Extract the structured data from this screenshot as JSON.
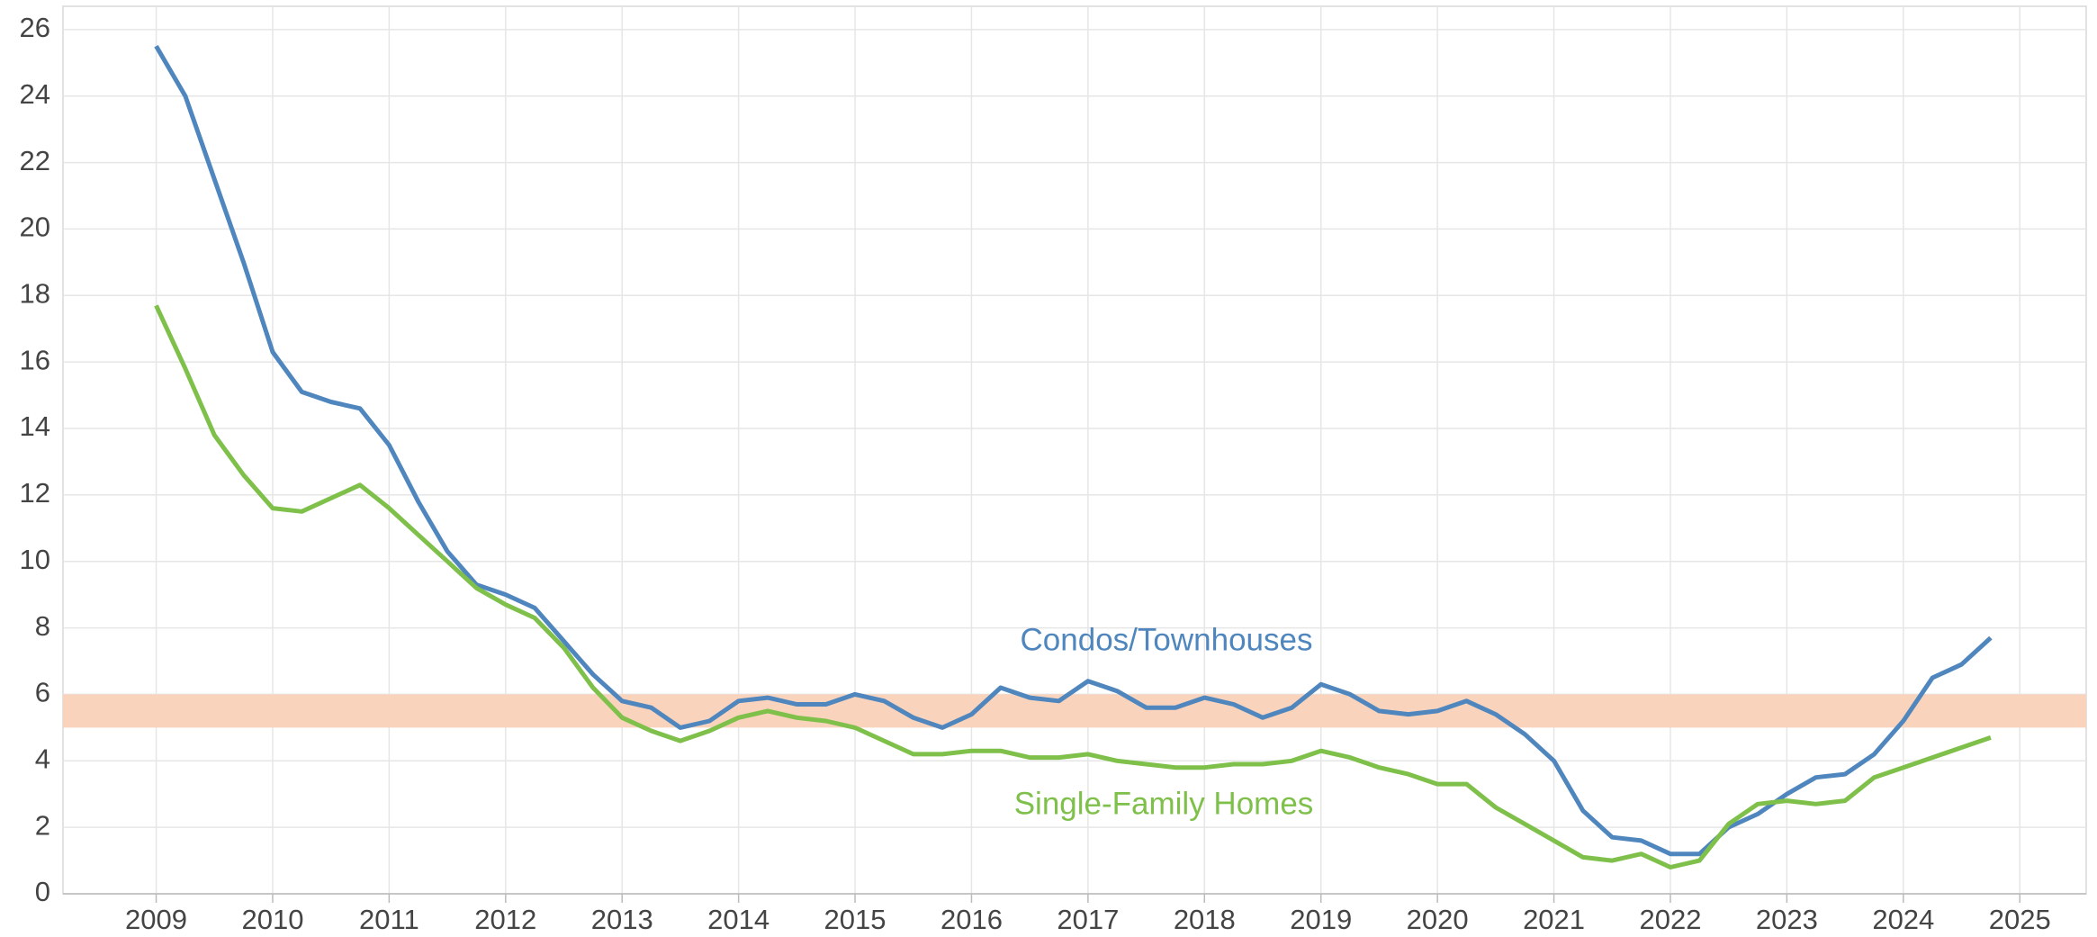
{
  "chart_data": {
    "type": "line",
    "x": [
      2009.0,
      2009.25,
      2009.5,
      2009.75,
      2010.0,
      2010.25,
      2010.5,
      2010.75,
      2011.0,
      2011.25,
      2011.5,
      2011.75,
      2012.0,
      2012.25,
      2012.5,
      2012.75,
      2013.0,
      2013.25,
      2013.5,
      2013.75,
      2014.0,
      2014.25,
      2014.5,
      2014.75,
      2015.0,
      2015.25,
      2015.5,
      2015.75,
      2016.0,
      2016.25,
      2016.5,
      2016.75,
      2017.0,
      2017.25,
      2017.5,
      2017.75,
      2018.0,
      2018.25,
      2018.5,
      2018.75,
      2019.0,
      2019.25,
      2019.5,
      2019.75,
      2020.0,
      2020.25,
      2020.5,
      2020.75,
      2021.0,
      2021.25,
      2021.5,
      2021.75,
      2022.0,
      2022.25,
      2022.5,
      2022.75,
      2023.0,
      2023.25,
      2023.5,
      2023.75,
      2024.0,
      2024.25,
      2024.5,
      2024.75
    ],
    "series": [
      {
        "name": "Condos/Townhouses",
        "color": "#4e86bd",
        "values": [
          25.5,
          24.0,
          21.5,
          19.0,
          16.3,
          15.1,
          14.8,
          14.6,
          13.5,
          11.8,
          10.3,
          9.3,
          9.0,
          8.6,
          7.6,
          6.6,
          5.8,
          5.6,
          5.0,
          5.2,
          5.8,
          5.9,
          5.7,
          5.7,
          6.0,
          5.8,
          5.3,
          5.0,
          5.4,
          6.2,
          5.9,
          5.8,
          6.4,
          6.1,
          5.6,
          5.6,
          5.9,
          5.7,
          5.3,
          5.6,
          6.3,
          6.0,
          5.5,
          5.4,
          5.5,
          5.8,
          5.4,
          4.8,
          4.0,
          2.5,
          1.7,
          1.6,
          1.2,
          1.2,
          2.0,
          2.4,
          3.0,
          3.5,
          3.6,
          4.2,
          5.2,
          6.5,
          6.9,
          7.7
        ]
      },
      {
        "name": "Single-Family Homes",
        "color": "#7ec04a",
        "values": [
          17.7,
          15.8,
          13.8,
          12.6,
          11.6,
          11.5,
          11.9,
          12.3,
          11.6,
          10.8,
          10.0,
          9.2,
          8.7,
          8.3,
          7.4,
          6.2,
          5.3,
          4.9,
          4.6,
          4.9,
          5.3,
          5.5,
          5.3,
          5.2,
          5.0,
          4.6,
          4.2,
          4.2,
          4.3,
          4.3,
          4.1,
          4.1,
          4.2,
          4.0,
          3.9,
          3.8,
          3.8,
          3.9,
          3.9,
          4.0,
          4.3,
          4.1,
          3.8,
          3.6,
          3.3,
          3.3,
          2.6,
          2.1,
          1.6,
          1.1,
          1.0,
          1.2,
          0.8,
          1.0,
          2.1,
          2.7,
          2.8,
          2.7,
          2.8,
          3.5,
          3.8,
          4.1,
          4.4,
          4.7
        ]
      }
    ],
    "band": {
      "range": [
        5,
        6
      ],
      "color": "#f9d3bc"
    },
    "xlim": [
      2008.2,
      2025.57
    ],
    "xticks": [
      2009,
      2010,
      2011,
      2012,
      2013,
      2014,
      2015,
      2016,
      2017,
      2018,
      2019,
      2020,
      2021,
      2022,
      2023,
      2024,
      2025
    ],
    "ylim": [
      0,
      26.7
    ],
    "yticks": [
      0,
      2,
      4,
      6,
      8,
      10,
      12,
      14,
      16,
      18,
      20,
      22,
      24,
      26
    ],
    "grid": true
  }
}
